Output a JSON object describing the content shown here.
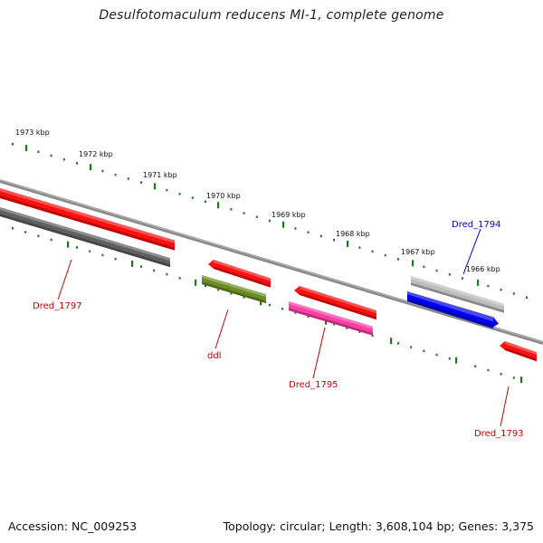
{
  "title": "Desulfotomaculum reducens MI-1, complete genome",
  "footer": {
    "accession": "Accession: NC_009253",
    "summary": "Topology: circular; Length: 3,608,104 bp; Genes: 3,375"
  },
  "colors": {
    "backbone": "#777777",
    "ticks": "#1a7a1a",
    "forward_gene": "#ff0000",
    "label_red": "#cc0000",
    "label_blue": "#0000cc"
  },
  "kbp_ticks": [
    "1973 kbp",
    "1972 kbp",
    "1971 kbp",
    "1970 kbp",
    "1969 kbp",
    "1968 kbp",
    "1967 kbp",
    "1966 kbp"
  ],
  "genes": [
    {
      "label": "Dred_1797",
      "color": "#ff0000",
      "label_color": "#cc0000"
    },
    {
      "label": "ddl",
      "color": "#6b8e23",
      "label_color": "#cc0000"
    },
    {
      "label": "Dred_1795",
      "color": "#ff3fa6",
      "label_color": "#cc0000"
    },
    {
      "label": "Dred_1794",
      "color": "#0000ee",
      "label_color": "#0000cc"
    },
    {
      "label": "Dred_1793",
      "color": "#ff0000",
      "label_color": "#cc0000"
    }
  ]
}
